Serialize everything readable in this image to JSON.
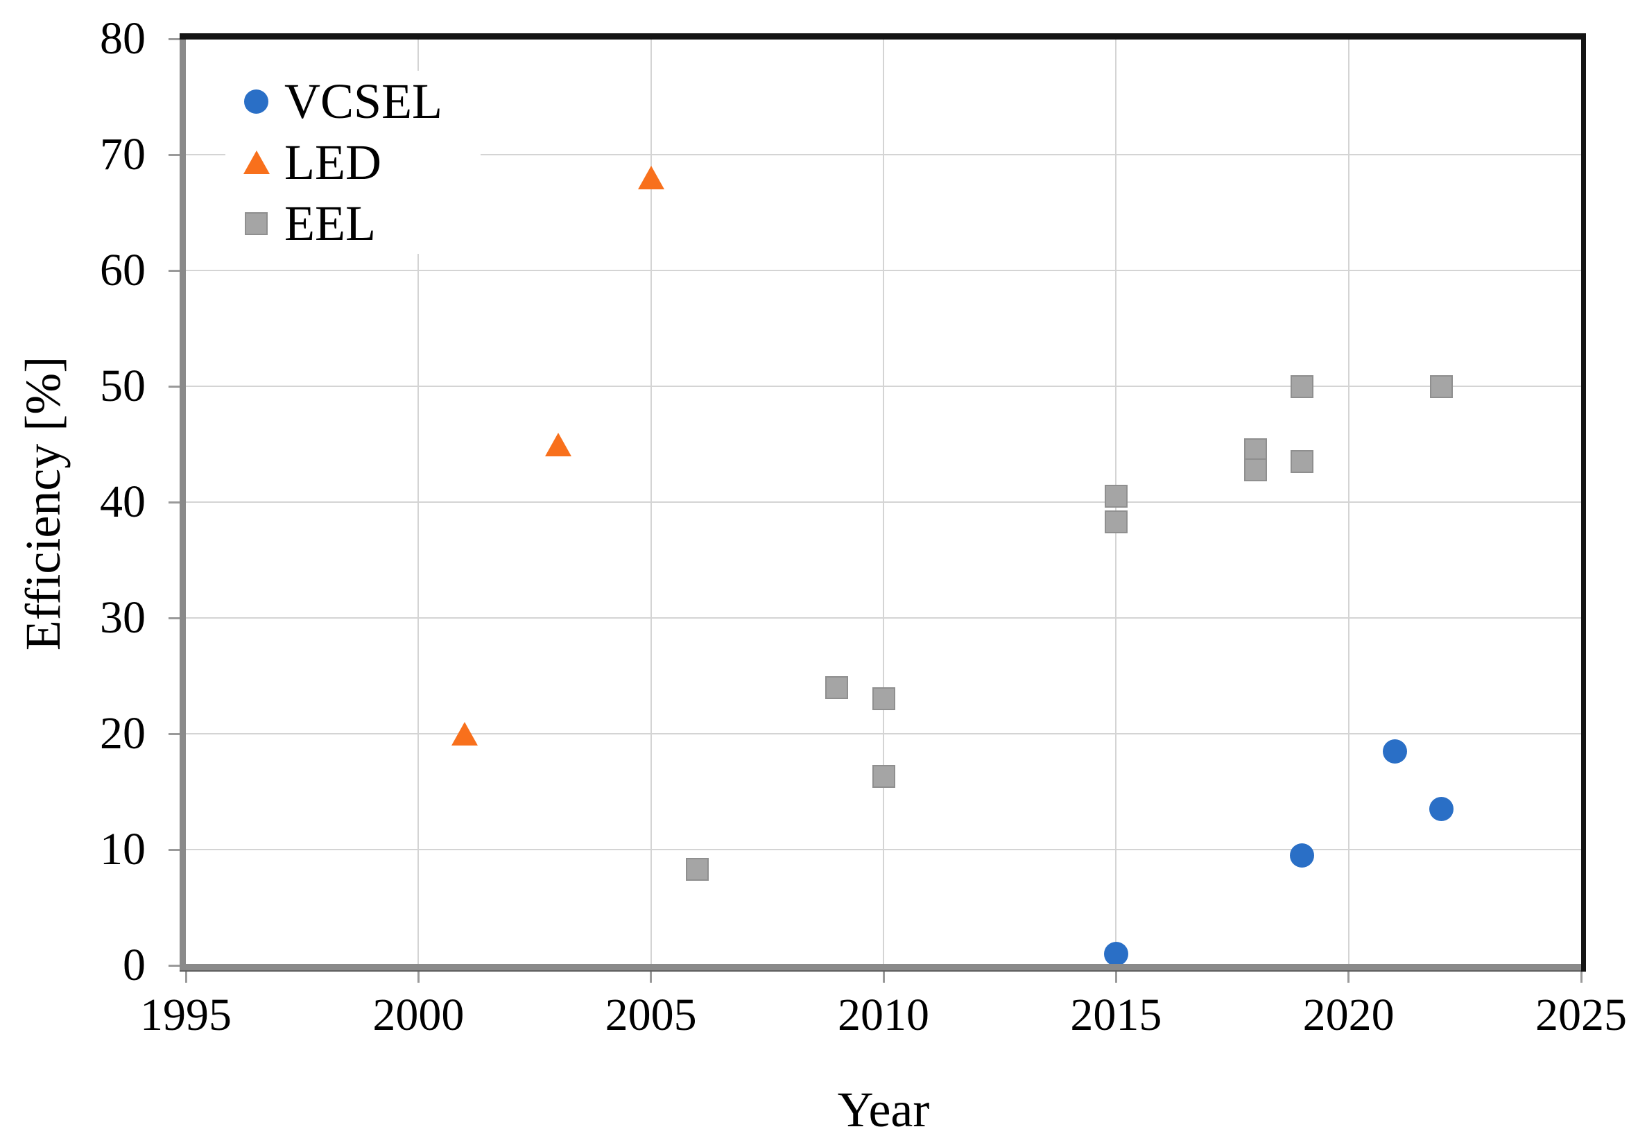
{
  "chart_data": {
    "type": "scatter",
    "title": "",
    "xlabel": "Year",
    "ylabel": "Efficiency [%]",
    "xlim": [
      1995,
      2025
    ],
    "ylim": [
      0,
      80
    ],
    "x_ticks": [
      "1995",
      "2000",
      "2005",
      "2010",
      "2015",
      "2020",
      "2025"
    ],
    "y_ticks": [
      "0",
      "10",
      "20",
      "30",
      "40",
      "50",
      "60",
      "70",
      "80"
    ],
    "grid": true,
    "legend_position": "top-left-inside",
    "colors": {
      "vcsel_blue": "#2a6fc6",
      "led_orange": "#f8701c",
      "eel_gray": "#a5a5a5",
      "gridline": "#d4d4d4",
      "axis_gray": "#8a8a8a",
      "border_black": "#141414"
    },
    "series": [
      {
        "name": "VCSEL",
        "marker": "circle",
        "color": "#2a6fc6",
        "points": [
          [
            2015,
            1
          ],
          [
            2019,
            9.5
          ],
          [
            2021,
            18.5
          ],
          [
            2022,
            13.5
          ]
        ]
      },
      {
        "name": "LED",
        "marker": "triangle",
        "color": "#f8701c",
        "points": [
          [
            2001,
            20
          ],
          [
            2003,
            45
          ],
          [
            2005,
            68
          ]
        ]
      },
      {
        "name": "EEL",
        "marker": "square",
        "color": "#a5a5a5",
        "points": [
          [
            2006,
            8.3
          ],
          [
            2009,
            24
          ],
          [
            2010,
            23
          ],
          [
            2010,
            16.3
          ],
          [
            2015,
            40.5
          ],
          [
            2015,
            38.3
          ],
          [
            2018,
            44.5
          ],
          [
            2018,
            42.8
          ],
          [
            2019,
            50
          ],
          [
            2019,
            43.5
          ],
          [
            2022,
            50
          ]
        ]
      }
    ]
  }
}
